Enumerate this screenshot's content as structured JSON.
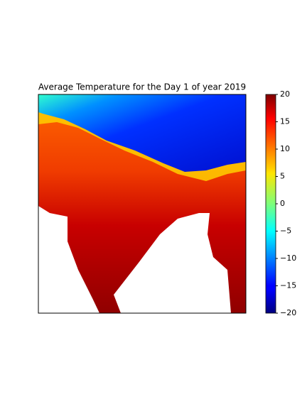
{
  "map": {
    "title": "Average Temperature for the Day 1 of year 2019",
    "colorbar": {
      "colormap": "jet",
      "lim": [
        -20,
        20
      ],
      "ticks": [
        {
          "value": -20,
          "label": "−20"
        },
        {
          "value": -15,
          "label": "−15"
        },
        {
          "value": -10,
          "label": "−10"
        },
        {
          "value": -5,
          "label": "−5"
        },
        0,
        5,
        10,
        15,
        20
      ]
    }
  }
}
